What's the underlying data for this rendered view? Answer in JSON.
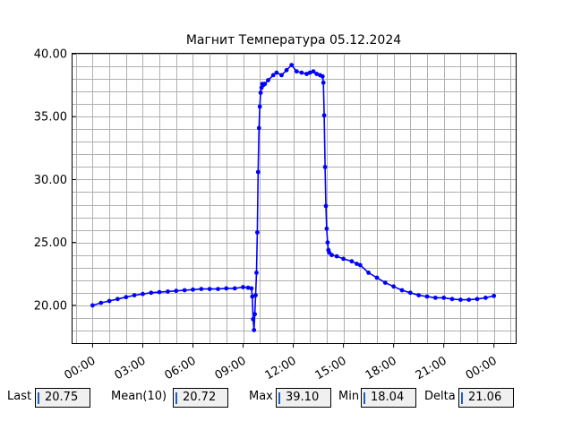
{
  "chart_data": {
    "type": "line",
    "title": "Магнит Температура 05.12.2024",
    "xlabel": "",
    "ylabel": "",
    "x_tick_labels": [
      "00:00",
      "03:00",
      "06:00",
      "09:00",
      "12:00",
      "15:00",
      "18:00",
      "21:00",
      "00:00"
    ],
    "x_tick_hours": [
      0,
      3,
      6,
      9,
      12,
      15,
      18,
      21,
      24
    ],
    "xlim": [
      -1.2,
      25.3
    ],
    "y_tick_labels": [
      "20.00",
      "25.00",
      "30.00",
      "35.00",
      "40.00"
    ],
    "y_tick_values": [
      20,
      25,
      30,
      35,
      40
    ],
    "ylim": [
      17.0,
      40.0
    ],
    "grid": true,
    "line_color": "#0000ff",
    "series": [
      {
        "x_hours": [
          0.0,
          0.5,
          1.0,
          1.5,
          2.0,
          2.5,
          3.0,
          3.5,
          4.0,
          4.5,
          5.0,
          5.5,
          6.0,
          6.5,
          7.0,
          7.5,
          8.0,
          8.5,
          9.0,
          9.3,
          9.5,
          9.55,
          9.6,
          9.65,
          9.7,
          9.75,
          9.8,
          9.85,
          9.9,
          9.95,
          10.0,
          10.05,
          10.1,
          10.15,
          10.2,
          10.3,
          10.5,
          10.8,
          11.0,
          11.3,
          11.6,
          11.9,
          12.2,
          12.5,
          12.8,
          13.0,
          13.2,
          13.4,
          13.6,
          13.75,
          13.8,
          13.85,
          13.9,
          13.95,
          14.0,
          14.05,
          14.1,
          14.15,
          14.3,
          14.6,
          15.0,
          15.5,
          15.8,
          16.0,
          16.5,
          17.0,
          17.5,
          18.0,
          18.5,
          19.0,
          19.5,
          20.0,
          20.5,
          21.0,
          21.5,
          22.0,
          22.5,
          23.0,
          23.5,
          24.0
        ],
        "values": [
          20.0,
          20.2,
          20.35,
          20.5,
          20.65,
          20.8,
          20.9,
          21.0,
          21.05,
          21.1,
          21.15,
          21.2,
          21.25,
          21.3,
          21.3,
          21.3,
          21.35,
          21.35,
          21.45,
          21.4,
          21.35,
          20.7,
          18.9,
          18.04,
          19.3,
          20.8,
          22.6,
          25.8,
          30.6,
          34.1,
          35.8,
          36.9,
          37.3,
          37.6,
          37.5,
          37.6,
          37.9,
          38.3,
          38.5,
          38.3,
          38.7,
          39.1,
          38.6,
          38.5,
          38.4,
          38.5,
          38.6,
          38.4,
          38.3,
          38.2,
          37.7,
          35.1,
          31.0,
          27.9,
          26.1,
          25.0,
          24.4,
          24.2,
          24.0,
          23.9,
          23.7,
          23.5,
          23.3,
          23.2,
          22.6,
          22.2,
          21.8,
          21.5,
          21.2,
          21.0,
          20.8,
          20.7,
          20.6,
          20.6,
          20.5,
          20.45,
          20.45,
          20.5,
          20.6,
          20.75
        ]
      }
    ]
  },
  "stats": {
    "last_label": "Last",
    "last_value": "20.75",
    "mean_label": "Mean(10)",
    "mean_value": "20.72",
    "max_label": "Max",
    "max_value": "39.10",
    "min_label": "Min",
    "min_value": "18.04",
    "delta_label": "Delta",
    "delta_value": "21.06"
  }
}
